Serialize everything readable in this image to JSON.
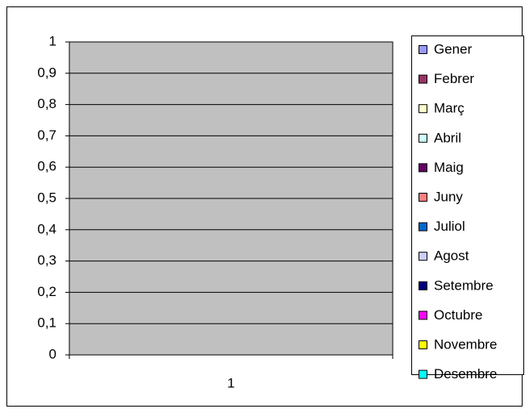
{
  "chart_data": {
    "type": "bar",
    "categories": [
      "1"
    ],
    "series": [
      {
        "name": "Gener",
        "color": "#9999ff",
        "values": [
          0
        ]
      },
      {
        "name": "Febrer",
        "color": "#993366",
        "values": [
          0
        ]
      },
      {
        "name": "Març",
        "color": "#ffffcc",
        "values": [
          0
        ]
      },
      {
        "name": "Abril",
        "color": "#ccffff",
        "values": [
          0
        ]
      },
      {
        "name": "Maig",
        "color": "#660066",
        "values": [
          0
        ]
      },
      {
        "name": "Juny",
        "color": "#ff8080",
        "values": [
          0
        ]
      },
      {
        "name": "Juliol",
        "color": "#0066cc",
        "values": [
          0
        ]
      },
      {
        "name": "Agost",
        "color": "#ccccff",
        "values": [
          0
        ]
      },
      {
        "name": "Setembre",
        "color": "#000080",
        "values": [
          0
        ]
      },
      {
        "name": "Octubre",
        "color": "#ff00ff",
        "values": [
          0
        ]
      },
      {
        "name": "Novembre",
        "color": "#ffff00",
        "values": [
          0
        ]
      },
      {
        "name": "Desembre",
        "color": "#00ffff",
        "values": [
          0
        ]
      }
    ],
    "ylim": [
      0,
      1
    ],
    "yticks": [
      0,
      {
        "value": 0.1,
        "label": "0,1"
      },
      {
        "value": 0.2,
        "label": "0,2"
      },
      {
        "value": 0.3,
        "label": "0,3"
      },
      {
        "value": 0.4,
        "label": "0,4"
      },
      {
        "value": 0.5,
        "label": "0,5"
      },
      {
        "value": 0.6,
        "label": "0,6"
      },
      {
        "value": 0.7,
        "label": "0,7"
      },
      {
        "value": 0.8,
        "label": "0,8"
      },
      {
        "value": 0.9,
        "label": "0,9"
      },
      1
    ],
    "grid": true,
    "legend": "right",
    "plot_background": "#c0c0c0"
  }
}
